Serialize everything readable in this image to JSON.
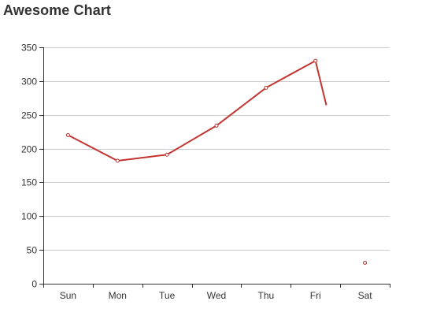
{
  "chart_data": {
    "type": "line",
    "title": "Awesome Chart",
    "categories": [
      "Sun",
      "Mon",
      "Tue",
      "Wed",
      "Thu",
      "Fri",
      "Sat"
    ],
    "values": [
      220,
      182,
      191,
      234,
      290,
      330,
      31
    ],
    "ylim": [
      0,
      350
    ],
    "yticks": [
      0,
      50,
      100,
      150,
      200,
      250,
      300,
      350
    ],
    "grid": true,
    "colors": {
      "line": "#c23531",
      "point_fill": "#ffffff",
      "grid": "#cccccc",
      "axis": "#333333"
    }
  }
}
